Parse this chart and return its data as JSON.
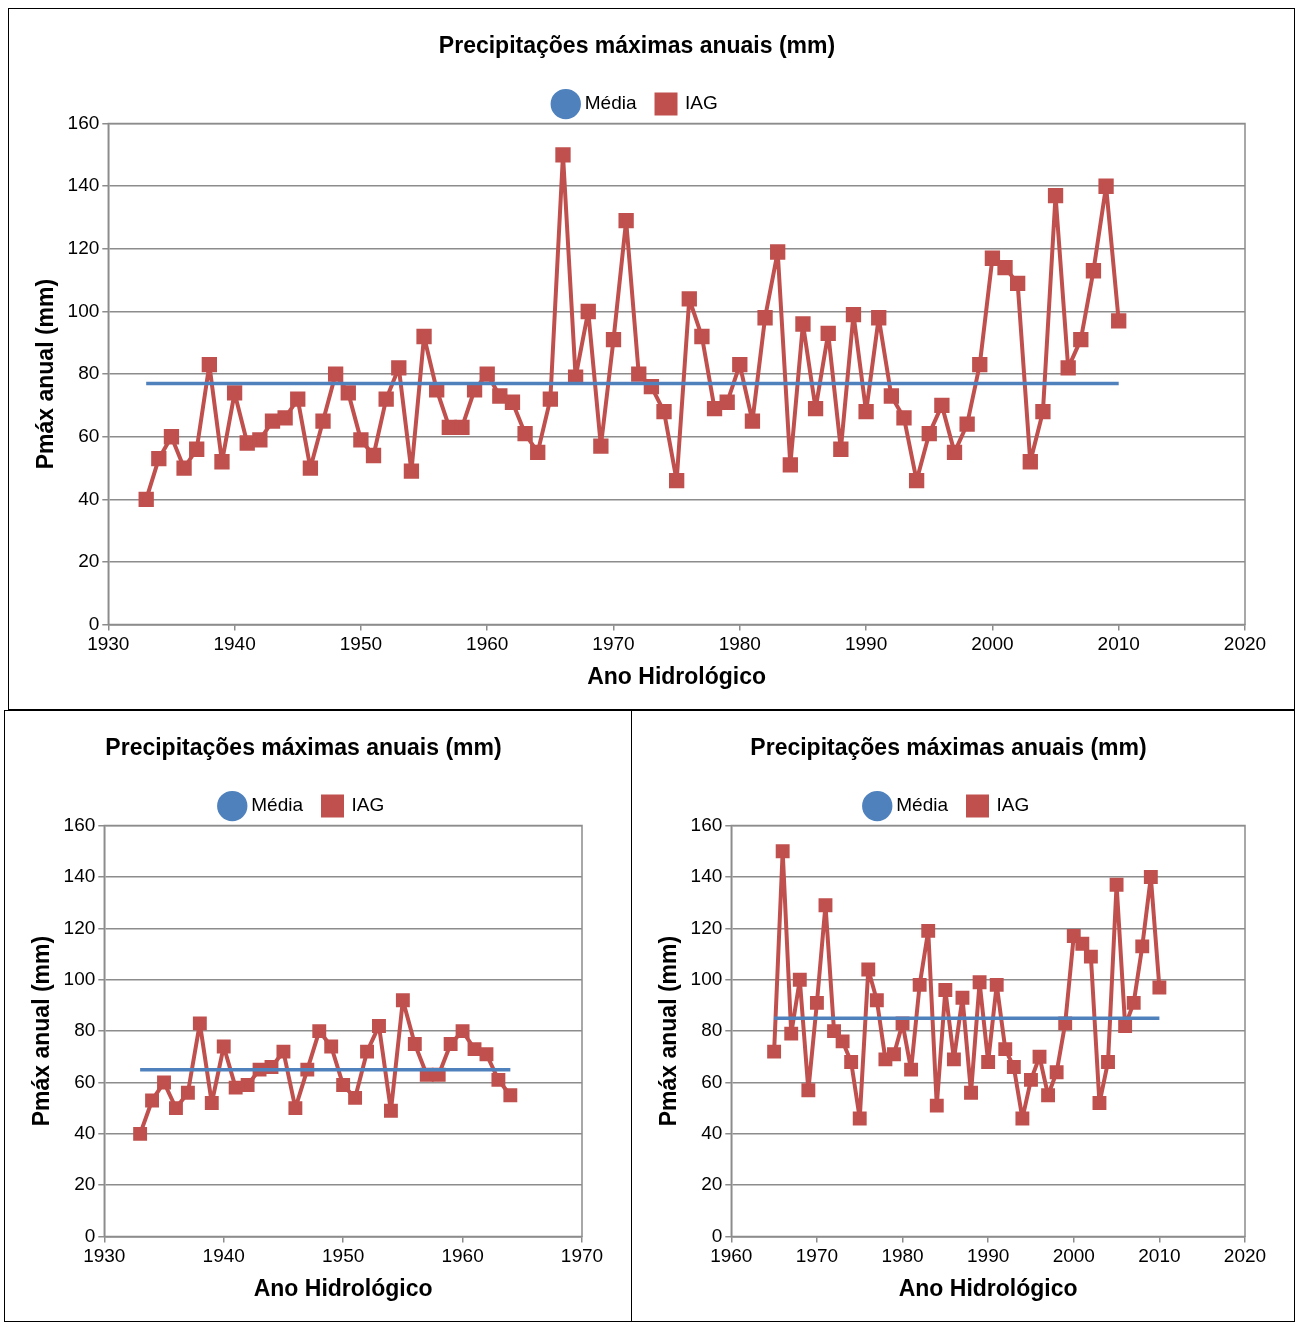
{
  "chart_data": [
    {
      "type": "line",
      "title": "Precipitações máximas anuais (mm)",
      "xlabel": "Ano Hidrológico",
      "ylabel": "Pmáx anual (mm)",
      "xlim": [
        1930,
        2020
      ],
      "xticks": [
        1930,
        1940,
        1950,
        1960,
        1970,
        1980,
        1990,
        2000,
        2010,
        2020
      ],
      "ylim": [
        0,
        160
      ],
      "yticks": [
        0,
        20,
        40,
        60,
        80,
        100,
        120,
        140,
        160
      ],
      "grid": "y",
      "legend": "top",
      "line_style": "solid",
      "x": [
        1933,
        1934,
        1935,
        1936,
        1937,
        1938,
        1939,
        1940,
        1941,
        1942,
        1943,
        1944,
        1945,
        1946,
        1947,
        1948,
        1949,
        1950,
        1951,
        1952,
        1953,
        1954,
        1955,
        1956,
        1957,
        1958,
        1959,
        1960,
        1961,
        1962,
        1963,
        1964,
        1965,
        1966,
        1967,
        1968,
        1969,
        1970,
        1971,
        1972,
        1973,
        1974,
        1975,
        1976,
        1977,
        1978,
        1979,
        1980,
        1981,
        1982,
        1983,
        1984,
        1985,
        1986,
        1987,
        1988,
        1989,
        1990,
        1991,
        1992,
        1993,
        1994,
        1995,
        1996,
        1997,
        1998,
        1999,
        2000,
        2001,
        2002,
        2003,
        2004,
        2005,
        2006,
        2007,
        2008,
        2009,
        2010
      ],
      "series": [
        {
          "name": "IAG",
          "color": "#c0504d",
          "marker": "square",
          "values": [
            40,
            53,
            60,
            50,
            56,
            83,
            52,
            74,
            58,
            59,
            65,
            66,
            72,
            50,
            65,
            80,
            74,
            59,
            54,
            72,
            82,
            49,
            92,
            75,
            63,
            63,
            75,
            80,
            73,
            71,
            61,
            55,
            72,
            150,
            79,
            100,
            57,
            91,
            129,
            80,
            76,
            68,
            46,
            104,
            92,
            69,
            71,
            83,
            65,
            98,
            119,
            51,
            96,
            69,
            93,
            56,
            99,
            68,
            98,
            73,
            66,
            46,
            61,
            70,
            55,
            64,
            83,
            117,
            114,
            109,
            52,
            68,
            137,
            82,
            91,
            113,
            140,
            97
          ]
        },
        {
          "name": "Média",
          "color": "#4f81bd",
          "marker": "none",
          "values": [
            77,
            77,
            77,
            77,
            77,
            77,
            77,
            77,
            77,
            77,
            77,
            77,
            77,
            77,
            77,
            77,
            77,
            77,
            77,
            77,
            77,
            77,
            77,
            77,
            77,
            77,
            77,
            77,
            77,
            77,
            77,
            77,
            77,
            77,
            77,
            77,
            77,
            77,
            77,
            77,
            77,
            77,
            77,
            77,
            77,
            77,
            77,
            77,
            77,
            77,
            77,
            77,
            77,
            77,
            77,
            77,
            77,
            77,
            77,
            77,
            77,
            77,
            77,
            77,
            77,
            77,
            77,
            77,
            77,
            77,
            77,
            77,
            77,
            77,
            77,
            77,
            77,
            77
          ]
        }
      ]
    },
    {
      "type": "line",
      "title": "Precipitações máximas anuais (mm)",
      "xlabel": "Ano Hidrológico",
      "ylabel": "Pmáx anual (mm)",
      "xlim": [
        1930,
        1970
      ],
      "xticks": [
        1930,
        1940,
        1950,
        1960,
        1970
      ],
      "ylim": [
        0,
        160
      ],
      "yticks": [
        0,
        20,
        40,
        60,
        80,
        100,
        120,
        140,
        160
      ],
      "grid": "y",
      "legend": "top",
      "line_style": "solid",
      "x": [
        1933,
        1934,
        1935,
        1936,
        1937,
        1938,
        1939,
        1940,
        1941,
        1942,
        1943,
        1944,
        1945,
        1946,
        1947,
        1948,
        1949,
        1950,
        1951,
        1952,
        1953,
        1954,
        1955,
        1956,
        1957,
        1958,
        1959,
        1960,
        1961,
        1962,
        1963,
        1964
      ],
      "series": [
        {
          "name": "IAG",
          "color": "#c0504d",
          "marker": "square",
          "values": [
            40,
            53,
            60,
            50,
            56,
            83,
            52,
            74,
            58,
            59,
            65,
            66,
            72,
            50,
            65,
            80,
            74,
            59,
            54,
            72,
            82,
            49,
            92,
            75,
            63,
            63,
            75,
            80,
            73,
            71,
            61,
            55
          ]
        },
        {
          "name": "Média",
          "color": "#4f81bd",
          "marker": "none",
          "values": [
            65,
            65,
            65,
            65,
            65,
            65,
            65,
            65,
            65,
            65,
            65,
            65,
            65,
            65,
            65,
            65,
            65,
            65,
            65,
            65,
            65,
            65,
            65,
            65,
            65,
            65,
            65,
            65,
            65,
            65,
            65,
            65
          ]
        }
      ]
    },
    {
      "type": "line",
      "title": "Precipitações máximas anuais (mm)",
      "xlabel": "Ano Hidrológico",
      "ylabel": "Pmáx anual (mm)",
      "xlim": [
        1960,
        2020
      ],
      "xticks": [
        1960,
        1970,
        1980,
        1990,
        2000,
        2010,
        2020
      ],
      "ylim": [
        0,
        160
      ],
      "yticks": [
        0,
        20,
        40,
        60,
        80,
        100,
        120,
        140,
        160
      ],
      "grid": "y",
      "legend": "top",
      "line_style": "solid",
      "x": [
        1965,
        1966,
        1967,
        1968,
        1969,
        1970,
        1971,
        1972,
        1973,
        1974,
        1975,
        1976,
        1977,
        1978,
        1979,
        1980,
        1981,
        1982,
        1983,
        1984,
        1985,
        1986,
        1987,
        1988,
        1989,
        1990,
        1991,
        1992,
        1993,
        1994,
        1995,
        1996,
        1997,
        1998,
        1999,
        2000,
        2001,
        2002,
        2003,
        2004,
        2005,
        2006,
        2007,
        2008,
        2009,
        2010
      ],
      "series": [
        {
          "name": "IAG",
          "color": "#c0504d",
          "marker": "square",
          "values": [
            72,
            150,
            79,
            100,
            57,
            91,
            129,
            80,
            76,
            68,
            46,
            104,
            92,
            69,
            71,
            83,
            65,
            98,
            119,
            51,
            96,
            69,
            93,
            56,
            99,
            68,
            98,
            73,
            66,
            46,
            61,
            70,
            55,
            64,
            83,
            117,
            114,
            109,
            52,
            68,
            137,
            82,
            91,
            113,
            140,
            97
          ]
        },
        {
          "name": "Média",
          "color": "#4f81bd",
          "marker": "none",
          "values": [
            85,
            85,
            85,
            85,
            85,
            85,
            85,
            85,
            85,
            85,
            85,
            85,
            85,
            85,
            85,
            85,
            85,
            85,
            85,
            85,
            85,
            85,
            85,
            85,
            85,
            85,
            85,
            85,
            85,
            85,
            85,
            85,
            85,
            85,
            85,
            85,
            85,
            85,
            85,
            85,
            85,
            85,
            85,
            85,
            85,
            85
          ]
        }
      ]
    }
  ]
}
